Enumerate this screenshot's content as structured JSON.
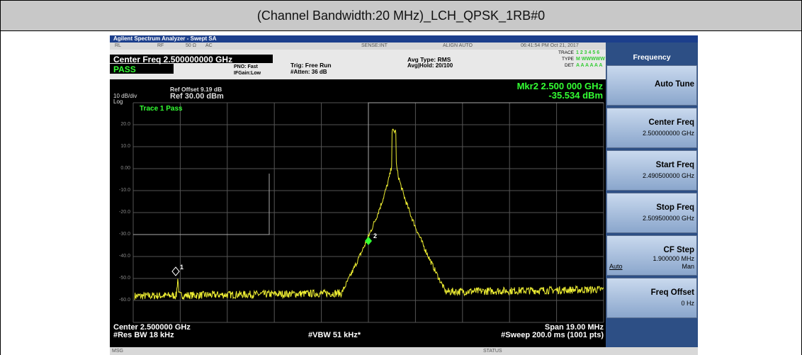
{
  "title": "(Channel Bandwidth:20 MHz)_LCH_QPSK_1RB#0",
  "analyzer": {
    "window_title": "Agilent Spectrum Analyzer - Swept SA",
    "status_row": [
      "RL",
      "RF",
      "50 Ω",
      "AC",
      "SENSE:INT",
      "ALIGN AUTO",
      "06:41:54 PM Oct 21, 2017"
    ],
    "center_freq": "Center Freq 2.500000000 GHz",
    "pass": "PASS",
    "pno": "PNO: Fast",
    "ifgain": "IFGain:Low",
    "trig": "Trig: Free Run",
    "atten": "#Atten: 36 dB",
    "avg_type": "Avg Type: RMS",
    "avg_hold": "Avg|Hold: 20/100",
    "trace_info": {
      "trace": "TRACE",
      "trace_nums": "1 2 3 4 5 6",
      "type": "TYPE",
      "type_vals": "M WWWWW",
      "det": "DET",
      "det_vals": "A A A A A A"
    },
    "ref_offset": "Ref Offset 9.19 dB",
    "scale": "10 dB/div",
    "log": "Log",
    "ref_level": "Ref 30.00 dBm",
    "marker_freq": "Mkr2 2.500 000 GHz",
    "marker_level": "-35.534 dBm",
    "trace_pass": "Trace 1 Pass",
    "y_labels": [
      "20.0",
      "10.0",
      "0.00",
      "-10.0",
      "-20.0",
      "-30.0",
      "-40.0",
      "-50.0",
      "-60.0"
    ],
    "markers": [
      "1",
      "2"
    ],
    "footer": {
      "center": "Center 2.500000 GHz",
      "rbw": "#Res BW 18 kHz",
      "vbw": "#VBW 51 kHz*",
      "span": "Span 19.00 MHz",
      "sweep": "#Sweep  200.0 ms (1001 pts)"
    },
    "msg": "MSG",
    "status": "STATUS"
  },
  "softkeys": {
    "menu": "Frequency",
    "keys": [
      {
        "label": "Auto Tune"
      },
      {
        "label": "Center Freq",
        "value": "2.500000000 GHz"
      },
      {
        "label": "Start Freq",
        "value": "2.490500000 GHz"
      },
      {
        "label": "Stop Freq",
        "value": "2.509500000 GHz"
      },
      {
        "label": "CF Step",
        "value": "1.900000 MHz",
        "left": "Auto",
        "right": "Man"
      },
      {
        "label": "Freq Offset",
        "value": "0 Hz"
      }
    ]
  }
}
